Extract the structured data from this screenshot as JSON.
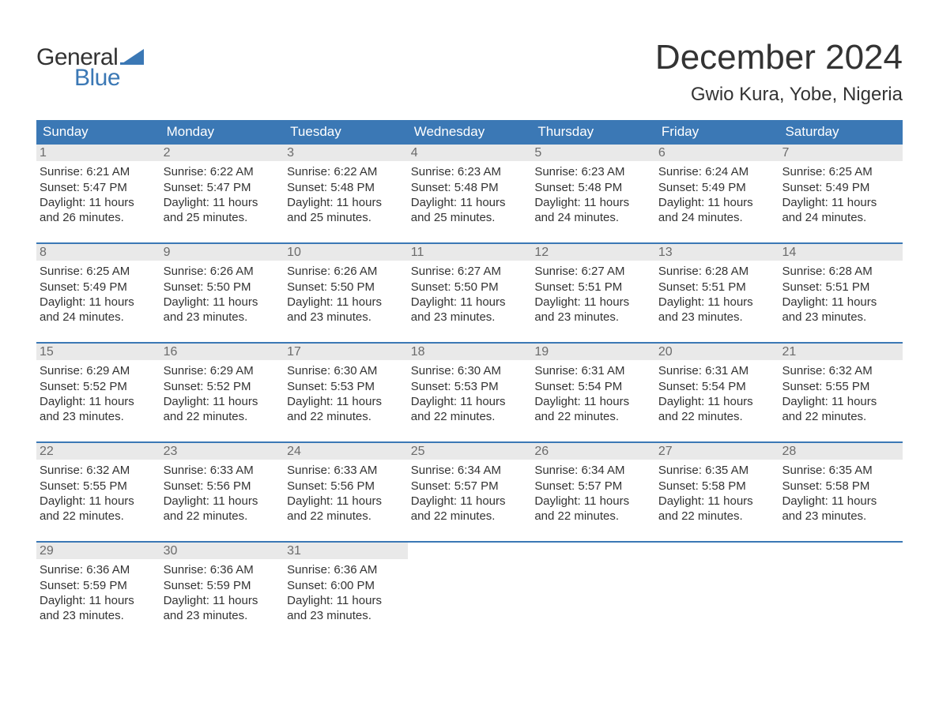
{
  "brand": {
    "word1": "General",
    "word2": "Blue",
    "text_color": "#333333",
    "accent_color": "#3b78b5"
  },
  "title": "December 2024",
  "location": "Gwio Kura, Yobe, Nigeria",
  "colors": {
    "header_bg": "#3b78b5",
    "header_text": "#ffffff",
    "daynum_bg": "#e9e9e9",
    "daynum_text": "#6b6b6b",
    "body_text": "#333333",
    "page_bg": "#ffffff",
    "week_divider": "#3b78b5"
  },
  "typography": {
    "month_title_fontsize": 44,
    "location_fontsize": 24,
    "header_cell_fontsize": 17,
    "daynum_fontsize": 16,
    "body_fontsize": 15,
    "font_family": "Arial"
  },
  "day_labels": [
    "Sunday",
    "Monday",
    "Tuesday",
    "Wednesday",
    "Thursday",
    "Friday",
    "Saturday"
  ],
  "labels": {
    "sunrise": "Sunrise:",
    "sunset": "Sunset:",
    "daylight": "Daylight:"
  },
  "weeks": [
    [
      {
        "n": "1",
        "sunrise": "6:21 AM",
        "sunset": "5:47 PM",
        "daylight": "11 hours and 26 minutes."
      },
      {
        "n": "2",
        "sunrise": "6:22 AM",
        "sunset": "5:47 PM",
        "daylight": "11 hours and 25 minutes."
      },
      {
        "n": "3",
        "sunrise": "6:22 AM",
        "sunset": "5:48 PM",
        "daylight": "11 hours and 25 minutes."
      },
      {
        "n": "4",
        "sunrise": "6:23 AM",
        "sunset": "5:48 PM",
        "daylight": "11 hours and 25 minutes."
      },
      {
        "n": "5",
        "sunrise": "6:23 AM",
        "sunset": "5:48 PM",
        "daylight": "11 hours and 24 minutes."
      },
      {
        "n": "6",
        "sunrise": "6:24 AM",
        "sunset": "5:49 PM",
        "daylight": "11 hours and 24 minutes."
      },
      {
        "n": "7",
        "sunrise": "6:25 AM",
        "sunset": "5:49 PM",
        "daylight": "11 hours and 24 minutes."
      }
    ],
    [
      {
        "n": "8",
        "sunrise": "6:25 AM",
        "sunset": "5:49 PM",
        "daylight": "11 hours and 24 minutes."
      },
      {
        "n": "9",
        "sunrise": "6:26 AM",
        "sunset": "5:50 PM",
        "daylight": "11 hours and 23 minutes."
      },
      {
        "n": "10",
        "sunrise": "6:26 AM",
        "sunset": "5:50 PM",
        "daylight": "11 hours and 23 minutes."
      },
      {
        "n": "11",
        "sunrise": "6:27 AM",
        "sunset": "5:50 PM",
        "daylight": "11 hours and 23 minutes."
      },
      {
        "n": "12",
        "sunrise": "6:27 AM",
        "sunset": "5:51 PM",
        "daylight": "11 hours and 23 minutes."
      },
      {
        "n": "13",
        "sunrise": "6:28 AM",
        "sunset": "5:51 PM",
        "daylight": "11 hours and 23 minutes."
      },
      {
        "n": "14",
        "sunrise": "6:28 AM",
        "sunset": "5:51 PM",
        "daylight": "11 hours and 23 minutes."
      }
    ],
    [
      {
        "n": "15",
        "sunrise": "6:29 AM",
        "sunset": "5:52 PM",
        "daylight": "11 hours and 23 minutes."
      },
      {
        "n": "16",
        "sunrise": "6:29 AM",
        "sunset": "5:52 PM",
        "daylight": "11 hours and 22 minutes."
      },
      {
        "n": "17",
        "sunrise": "6:30 AM",
        "sunset": "5:53 PM",
        "daylight": "11 hours and 22 minutes."
      },
      {
        "n": "18",
        "sunrise": "6:30 AM",
        "sunset": "5:53 PM",
        "daylight": "11 hours and 22 minutes."
      },
      {
        "n": "19",
        "sunrise": "6:31 AM",
        "sunset": "5:54 PM",
        "daylight": "11 hours and 22 minutes."
      },
      {
        "n": "20",
        "sunrise": "6:31 AM",
        "sunset": "5:54 PM",
        "daylight": "11 hours and 22 minutes."
      },
      {
        "n": "21",
        "sunrise": "6:32 AM",
        "sunset": "5:55 PM",
        "daylight": "11 hours and 22 minutes."
      }
    ],
    [
      {
        "n": "22",
        "sunrise": "6:32 AM",
        "sunset": "5:55 PM",
        "daylight": "11 hours and 22 minutes."
      },
      {
        "n": "23",
        "sunrise": "6:33 AM",
        "sunset": "5:56 PM",
        "daylight": "11 hours and 22 minutes."
      },
      {
        "n": "24",
        "sunrise": "6:33 AM",
        "sunset": "5:56 PM",
        "daylight": "11 hours and 22 minutes."
      },
      {
        "n": "25",
        "sunrise": "6:34 AM",
        "sunset": "5:57 PM",
        "daylight": "11 hours and 22 minutes."
      },
      {
        "n": "26",
        "sunrise": "6:34 AM",
        "sunset": "5:57 PM",
        "daylight": "11 hours and 22 minutes."
      },
      {
        "n": "27",
        "sunrise": "6:35 AM",
        "sunset": "5:58 PM",
        "daylight": "11 hours and 22 minutes."
      },
      {
        "n": "28",
        "sunrise": "6:35 AM",
        "sunset": "5:58 PM",
        "daylight": "11 hours and 23 minutes."
      }
    ],
    [
      {
        "n": "29",
        "sunrise": "6:36 AM",
        "sunset": "5:59 PM",
        "daylight": "11 hours and 23 minutes."
      },
      {
        "n": "30",
        "sunrise": "6:36 AM",
        "sunset": "5:59 PM",
        "daylight": "11 hours and 23 minutes."
      },
      {
        "n": "31",
        "sunrise": "6:36 AM",
        "sunset": "6:00 PM",
        "daylight": "11 hours and 23 minutes."
      },
      {
        "empty": true
      },
      {
        "empty": true
      },
      {
        "empty": true
      },
      {
        "empty": true
      }
    ]
  ]
}
